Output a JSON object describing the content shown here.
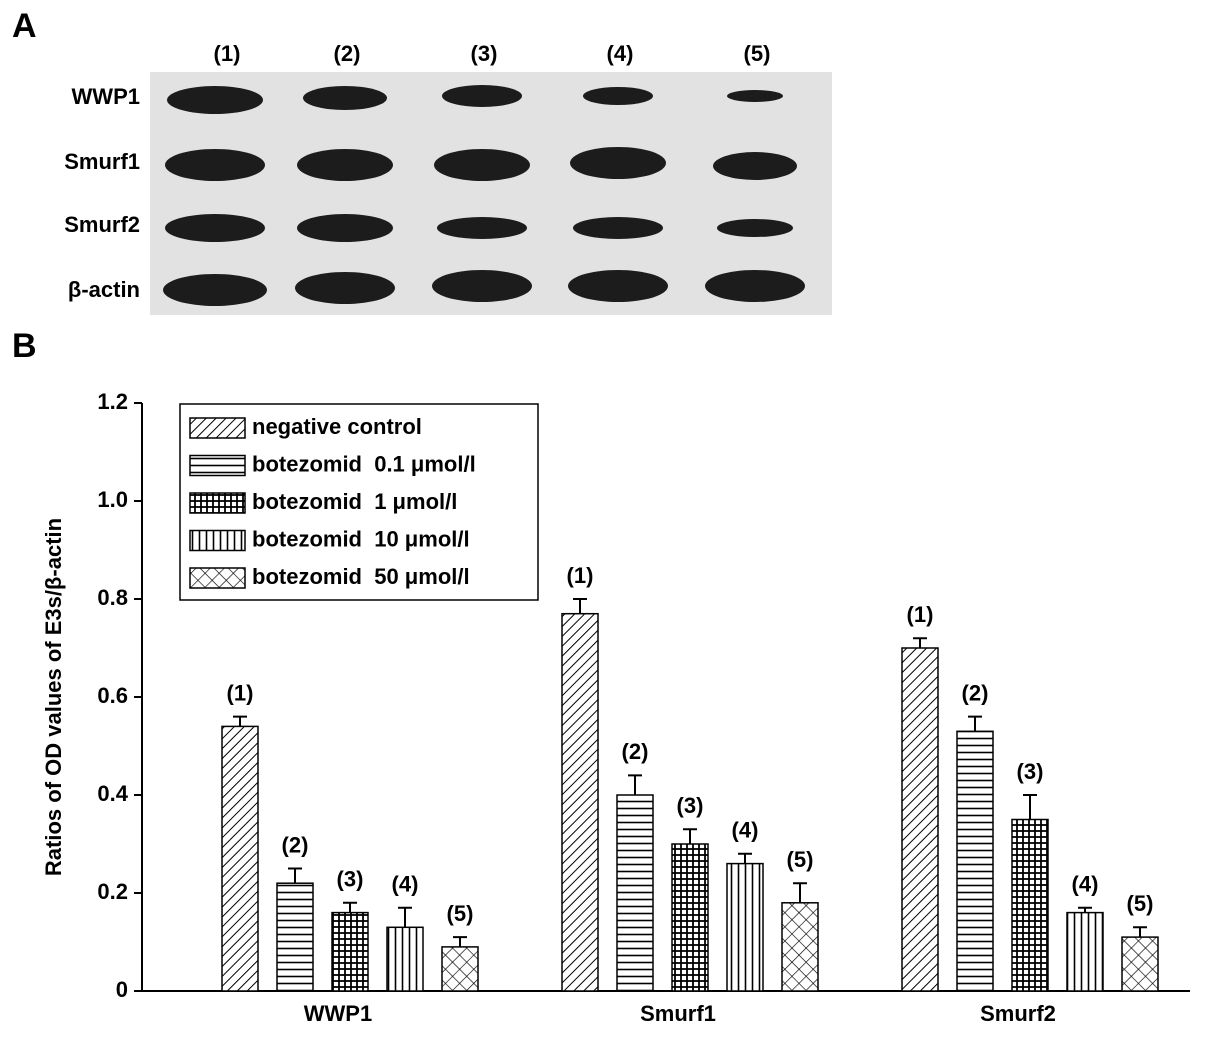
{
  "panel_a": {
    "label": "A",
    "lanes": [
      "(1)",
      "(2)",
      "(3)",
      "(4)",
      "(5)"
    ],
    "proteins": [
      "WWP1",
      "Smurf1",
      "Smurf2",
      "β-actin"
    ]
  },
  "chart_data": {
    "type": "bar",
    "panel_label": "B",
    "y_label": "Ratios of OD values of E3s/β-actin",
    "categories": [
      "WWP1",
      "Smurf1",
      "Smurf2"
    ],
    "series": [
      {
        "name": "negative control",
        "label": "(1)",
        "color": "#000000",
        "pattern": "diagonal",
        "values": [
          0.54,
          0.77,
          0.7
        ],
        "errors": [
          0.02,
          0.03,
          0.02
        ]
      },
      {
        "name": "botezomid  0.1 μmol/l",
        "label": "(2)",
        "color": "#000000",
        "pattern": "horizontal",
        "values": [
          0.22,
          0.4,
          0.53
        ],
        "errors": [
          0.03,
          0.04,
          0.03
        ]
      },
      {
        "name": "botezomid  1 μmol/l",
        "label": "(3)",
        "color": "#000000",
        "pattern": "grid",
        "values": [
          0.16,
          0.3,
          0.35
        ],
        "errors": [
          0.02,
          0.03,
          0.05
        ]
      },
      {
        "name": "botezomid  10 μmol/l",
        "label": "(4)",
        "color": "#000000",
        "pattern": "vertical",
        "values": [
          0.13,
          0.26,
          0.16
        ],
        "errors": [
          0.04,
          0.02,
          0.01
        ]
      },
      {
        "name": "botezomid  50 μmol/l",
        "label": "(5)",
        "color": "#000000",
        "pattern": "crosshatch",
        "values": [
          0.09,
          0.18,
          0.11
        ],
        "errors": [
          0.02,
          0.04,
          0.02
        ]
      }
    ],
    "ylim": [
      0,
      1.2
    ],
    "yticks": [
      0,
      0.2,
      0.4,
      0.6,
      0.8,
      {
        "value": 1,
        "label": "1.0"
      },
      1.2
    ],
    "grid": false,
    "legend": "top-left"
  }
}
